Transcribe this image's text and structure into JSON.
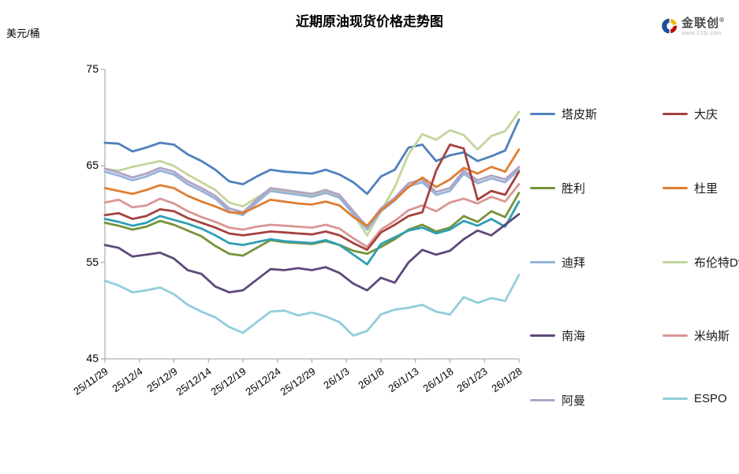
{
  "title": "近期原油现货价格走势图",
  "y_axis_unit": "美元/桶",
  "logo": {
    "brand": "金联创",
    "reg_mark": "®",
    "url": "www.315i.com"
  },
  "chart_data": {
    "type": "line",
    "title": "近期原油现货价格走势图",
    "ylabel": "美元/桶",
    "ylim": [
      45,
      75
    ],
    "y_ticks": [
      75,
      65,
      55,
      45
    ],
    "grid": false,
    "legend_position": "right",
    "x_tick_labels": [
      "25/11/29",
      "25/12/4",
      "25/12/9",
      "25/12/14",
      "25/12/19",
      "25/12/24",
      "25/12/29",
      "26/1/3",
      "26/1/8",
      "26/1/13",
      "26/1/18",
      "26/1/23",
      "26/1/28"
    ],
    "x": [
      "25/11/29",
      "25/12/1",
      "25/12/3",
      "25/12/5",
      "25/12/7",
      "25/12/9",
      "25/12/11",
      "25/12/13",
      "25/12/15",
      "25/12/17",
      "25/12/19",
      "25/12/21",
      "25/12/23",
      "25/12/25",
      "25/12/27",
      "25/12/29",
      "25/12/31",
      "26/1/2",
      "26/1/4",
      "26/1/6",
      "26/1/8",
      "26/1/10",
      "26/1/12",
      "26/1/14",
      "26/1/16",
      "26/1/18",
      "26/1/20",
      "26/1/22",
      "26/1/24",
      "26/1/26",
      "26/1/28"
    ],
    "series": [
      {
        "name": "塔皮斯",
        "color": "#4F81BD",
        "values": [
          67.4,
          67.3,
          66.5,
          66.9,
          67.4,
          67.2,
          66.2,
          65.5,
          64.6,
          63.4,
          63.1,
          63.9,
          64.6,
          64.4,
          64.3,
          64.2,
          64.6,
          64.1,
          63.3,
          62.1,
          63.9,
          64.6,
          66.9,
          67.2,
          65.5,
          66.1,
          66.4,
          65.5,
          66.0,
          66.6,
          69.8
        ]
      },
      {
        "name": "大庆",
        "color": "#A5423E",
        "values": [
          59.9,
          60.1,
          59.5,
          59.8,
          60.5,
          60.3,
          59.6,
          59.1,
          58.6,
          58.0,
          57.8,
          58.0,
          58.2,
          58.1,
          58.0,
          57.9,
          58.2,
          57.8,
          57.0,
          56.3,
          58.1,
          58.9,
          59.8,
          60.2,
          64.5,
          67.2,
          66.8,
          61.5,
          62.4,
          62.0,
          64.4
        ]
      },
      {
        "name": "胜利",
        "color": "#77933C",
        "values": [
          59.1,
          58.8,
          58.4,
          58.7,
          59.3,
          58.9,
          58.3,
          57.7,
          56.7,
          55.9,
          55.7,
          56.5,
          57.3,
          57.1,
          57.0,
          56.9,
          57.2,
          56.8,
          56.2,
          55.9,
          56.6,
          57.4,
          58.4,
          58.9,
          58.2,
          58.6,
          59.8,
          59.2,
          60.3,
          59.7,
          62.2
        ]
      },
      {
        "name": "杜里",
        "color": "#DE7E33",
        "values": [
          62.7,
          62.4,
          62.1,
          62.5,
          63.0,
          62.7,
          61.9,
          61.3,
          60.8,
          60.2,
          60.1,
          60.8,
          61.5,
          61.3,
          61.1,
          61.0,
          61.3,
          60.9,
          59.7,
          58.8,
          60.4,
          61.5,
          62.8,
          63.8,
          62.8,
          63.6,
          64.8,
          64.2,
          64.9,
          64.4,
          66.7
        ]
      },
      {
        "name": "迪拜",
        "color": "#95B3D7",
        "values": [
          64.4,
          64.0,
          63.5,
          63.9,
          64.5,
          64.1,
          63.1,
          62.4,
          61.6,
          60.3,
          59.9,
          61.2,
          62.4,
          62.2,
          62.0,
          61.8,
          62.2,
          61.7,
          60.0,
          58.4,
          60.3,
          61.4,
          62.9,
          63.3,
          62.0,
          62.4,
          64.2,
          63.2,
          63.7,
          63.3,
          64.6
        ]
      },
      {
        "name": "布伦特Dtd",
        "color": "#C3D69B",
        "values": [
          64.7,
          64.5,
          64.9,
          65.2,
          65.5,
          65.0,
          64.1,
          63.3,
          62.5,
          61.2,
          60.8,
          61.7,
          62.6,
          62.4,
          62.2,
          61.9,
          62.4,
          61.8,
          60.0,
          57.8,
          60.3,
          62.8,
          66.2,
          68.3,
          67.7,
          68.7,
          68.2,
          66.7,
          68.1,
          68.6,
          70.6
        ]
      },
      {
        "name": "南海",
        "color": "#5F497A",
        "values": [
          56.8,
          56.5,
          55.6,
          55.8,
          56.0,
          55.4,
          54.2,
          53.8,
          52.5,
          51.9,
          52.1,
          53.2,
          54.3,
          54.2,
          54.4,
          54.2,
          54.5,
          53.9,
          52.8,
          52.1,
          53.4,
          52.9,
          55.0,
          56.3,
          55.8,
          56.2,
          57.4,
          58.3,
          57.8,
          58.9,
          60.0
        ]
      },
      {
        "name": "米纳斯",
        "color": "#D99694",
        "values": [
          61.2,
          61.5,
          60.7,
          60.9,
          61.6,
          61.1,
          60.3,
          59.7,
          59.2,
          58.6,
          58.4,
          58.7,
          58.9,
          58.8,
          58.7,
          58.6,
          58.9,
          58.5,
          57.5,
          56.6,
          58.4,
          59.3,
          60.4,
          60.9,
          60.3,
          61.2,
          61.6,
          61.1,
          61.8,
          61.3,
          63.1
        ]
      },
      {
        "name": "阿曼",
        "color": "#B2A2C7",
        "values": [
          64.7,
          64.3,
          63.8,
          64.2,
          64.8,
          64.4,
          63.4,
          62.7,
          61.9,
          60.6,
          60.2,
          61.5,
          62.7,
          62.5,
          62.3,
          62.1,
          62.5,
          62.0,
          60.3,
          58.7,
          60.6,
          61.7,
          63.2,
          63.6,
          62.3,
          62.7,
          64.5,
          63.5,
          64.0,
          63.6,
          64.9
        ]
      },
      {
        "name": "ESPO",
        "color": "#92CDDC",
        "values": [
          53.1,
          52.6,
          51.9,
          52.1,
          52.4,
          51.7,
          50.6,
          49.9,
          49.3,
          48.3,
          47.7,
          48.8,
          49.9,
          50.0,
          49.5,
          49.8,
          49.4,
          48.8,
          47.4,
          47.9,
          49.6,
          50.1,
          50.3,
          50.6,
          49.9,
          49.6,
          51.4,
          50.8,
          51.3,
          51.0,
          53.7
        ]
      },
      {
        "name": "",
        "color": "#2E9FB4",
        "values": [
          59.5,
          59.2,
          58.8,
          59.1,
          59.8,
          59.4,
          59.0,
          58.5,
          57.8,
          57.0,
          56.8,
          57.1,
          57.4,
          57.2,
          57.1,
          57.0,
          57.3,
          56.8,
          55.8,
          54.8,
          56.9,
          57.6,
          58.3,
          58.6,
          58.0,
          58.4,
          59.3,
          58.8,
          59.5,
          58.7,
          61.3
        ]
      }
    ]
  }
}
